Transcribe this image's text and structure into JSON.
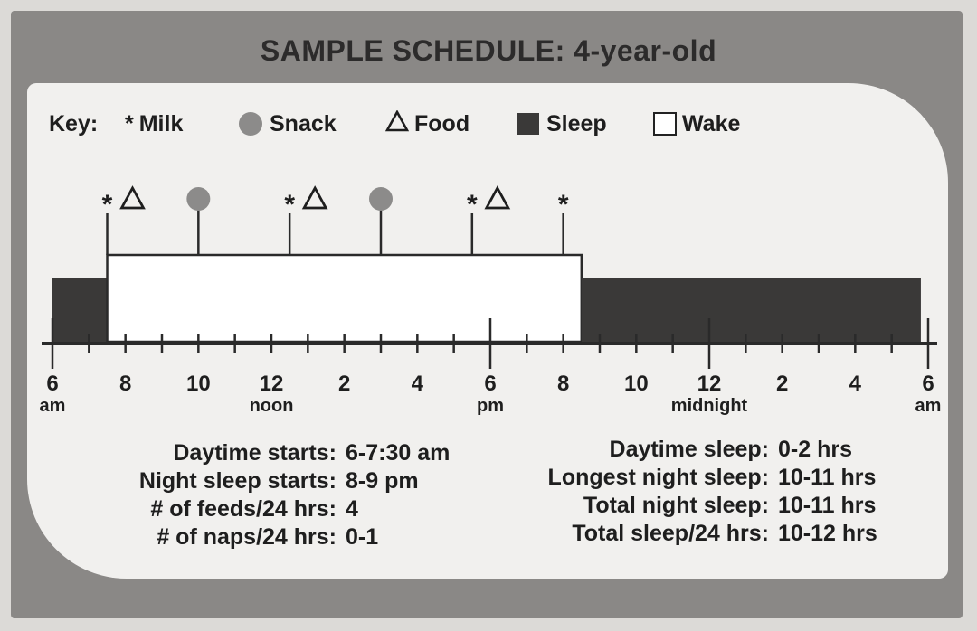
{
  "title": "SAMPLE SCHEDULE: 4-year-old",
  "key": {
    "label": "Key:",
    "milk": "Milk",
    "snack": "Snack",
    "food": "Food",
    "sleep": "Sleep",
    "wake": "Wake"
  },
  "colors": {
    "frame": "#8a8886",
    "panel": "#f1f0ee",
    "sleep": "#3a3938",
    "snack": "#8c8b8a",
    "wake": "#ffffff"
  },
  "timeline": {
    "start_hour": 6,
    "end_hour": 30,
    "tick_labels": [
      {
        "hour": 6,
        "label": "6",
        "sub": "am"
      },
      {
        "hour": 8,
        "label": "8",
        "sub": ""
      },
      {
        "hour": 10,
        "label": "10",
        "sub": ""
      },
      {
        "hour": 12,
        "label": "12",
        "sub": "noon"
      },
      {
        "hour": 14,
        "label": "2",
        "sub": ""
      },
      {
        "hour": 16,
        "label": "4",
        "sub": ""
      },
      {
        "hour": 18,
        "label": "6",
        "sub": "pm"
      },
      {
        "hour": 20,
        "label": "8",
        "sub": ""
      },
      {
        "hour": 22,
        "label": "10",
        "sub": ""
      },
      {
        "hour": 24,
        "label": "12",
        "sub": "midnight"
      },
      {
        "hour": 26,
        "label": "2",
        "sub": ""
      },
      {
        "hour": 28,
        "label": "4",
        "sub": ""
      },
      {
        "hour": 30,
        "label": "6",
        "sub": "am"
      }
    ],
    "segments": [
      {
        "state": "sleep",
        "start": 6,
        "end": 7.5
      },
      {
        "state": "wake",
        "start": 7.5,
        "end": 20.5
      },
      {
        "state": "sleep",
        "start": 20.5,
        "end": 29.8
      }
    ],
    "events": [
      {
        "hour": 7.5,
        "milk": true,
        "food": true,
        "snack": false
      },
      {
        "hour": 10,
        "milk": false,
        "food": false,
        "snack": true
      },
      {
        "hour": 12.5,
        "milk": true,
        "food": true,
        "snack": false
      },
      {
        "hour": 15,
        "milk": false,
        "food": false,
        "snack": true
      },
      {
        "hour": 17.5,
        "milk": true,
        "food": true,
        "snack": false
      },
      {
        "hour": 20,
        "milk": true,
        "food": false,
        "snack": false
      }
    ]
  },
  "stats_left": [
    {
      "label": "Daytime starts:",
      "value": "6-7:30 am"
    },
    {
      "label": "Night sleep starts:",
      "value": "8-9 pm"
    },
    {
      "label": "# of feeds/24 hrs:",
      "value": "4"
    },
    {
      "label": "# of naps/24 hrs:",
      "value": "0-1"
    }
  ],
  "stats_right": [
    {
      "label": "Daytime sleep:",
      "value": "0-2 hrs"
    },
    {
      "label": "Longest night sleep:",
      "value": "10-11 hrs"
    },
    {
      "label": "Total night sleep:",
      "value": "10-11 hrs"
    },
    {
      "label": "Total sleep/24 hrs:",
      "value": "10-12 hrs"
    }
  ]
}
